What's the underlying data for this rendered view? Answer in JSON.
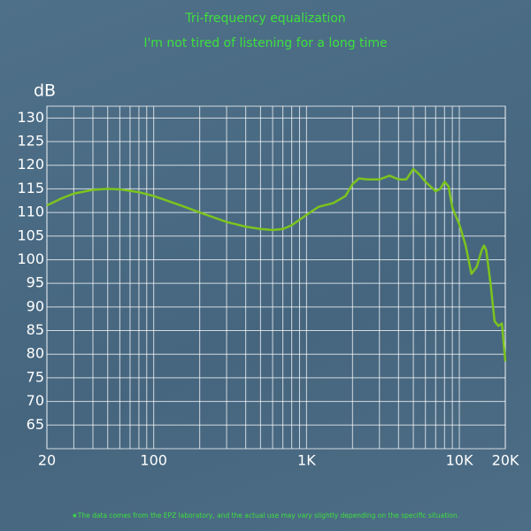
{
  "chart_data": {
    "type": "line",
    "title": "Tri-frequency equalization",
    "subtitle": "I'm not tired of listening for a long time",
    "ylabel": "dB",
    "footnote": "★The data comes from the EPZ laboratory, and the actual use may vary slightly depending on the specific situation.",
    "x": [
      20,
      25,
      30,
      40,
      50,
      60,
      80,
      100,
      150,
      200,
      300,
      400,
      500,
      600,
      700,
      800,
      1000,
      1200,
      1500,
      1800,
      2000,
      2200,
      2500,
      3000,
      3500,
      4000,
      4500,
      5000,
      5500,
      6000,
      7000,
      7500,
      8000,
      8500,
      9000,
      10000,
      11000,
      12000,
      13000,
      14000,
      14500,
      15000,
      16000,
      17000,
      18000,
      19000,
      20000
    ],
    "values": [
      111.5,
      113,
      114,
      114.8,
      115,
      114.9,
      114.3,
      113.5,
      111.5,
      110,
      108,
      107,
      106.5,
      106.3,
      106.5,
      107.3,
      109.5,
      111.2,
      112,
      113.5,
      116,
      117.2,
      117,
      117,
      117.8,
      117,
      117,
      119.2,
      118,
      116.5,
      114.5,
      115,
      116.5,
      115.5,
      111,
      107.5,
      103,
      97,
      98.5,
      102,
      103,
      102,
      95,
      87,
      86,
      86.5,
      78.5
    ],
    "color": "#7cc41e",
    "xscale": "log",
    "xlim": [
      20,
      20000
    ],
    "ylim": [
      60,
      132.5
    ],
    "xticks": [
      20,
      100,
      {
        "value": 1000,
        "label": "1K"
      },
      {
        "value": 10000,
        "label": "10K"
      },
      {
        "value": 20000,
        "label": "20K"
      }
    ],
    "xgrid": [
      30,
      40,
      50,
      60,
      70,
      80,
      90,
      200,
      300,
      400,
      500,
      600,
      700,
      800,
      900,
      2000,
      3000,
      4000,
      5000,
      6000,
      7000,
      8000,
      9000
    ],
    "yticks": [
      65,
      70,
      75,
      80,
      85,
      90,
      95,
      100,
      105,
      110,
      115,
      120,
      125,
      130
    ],
    "grid": true
  }
}
